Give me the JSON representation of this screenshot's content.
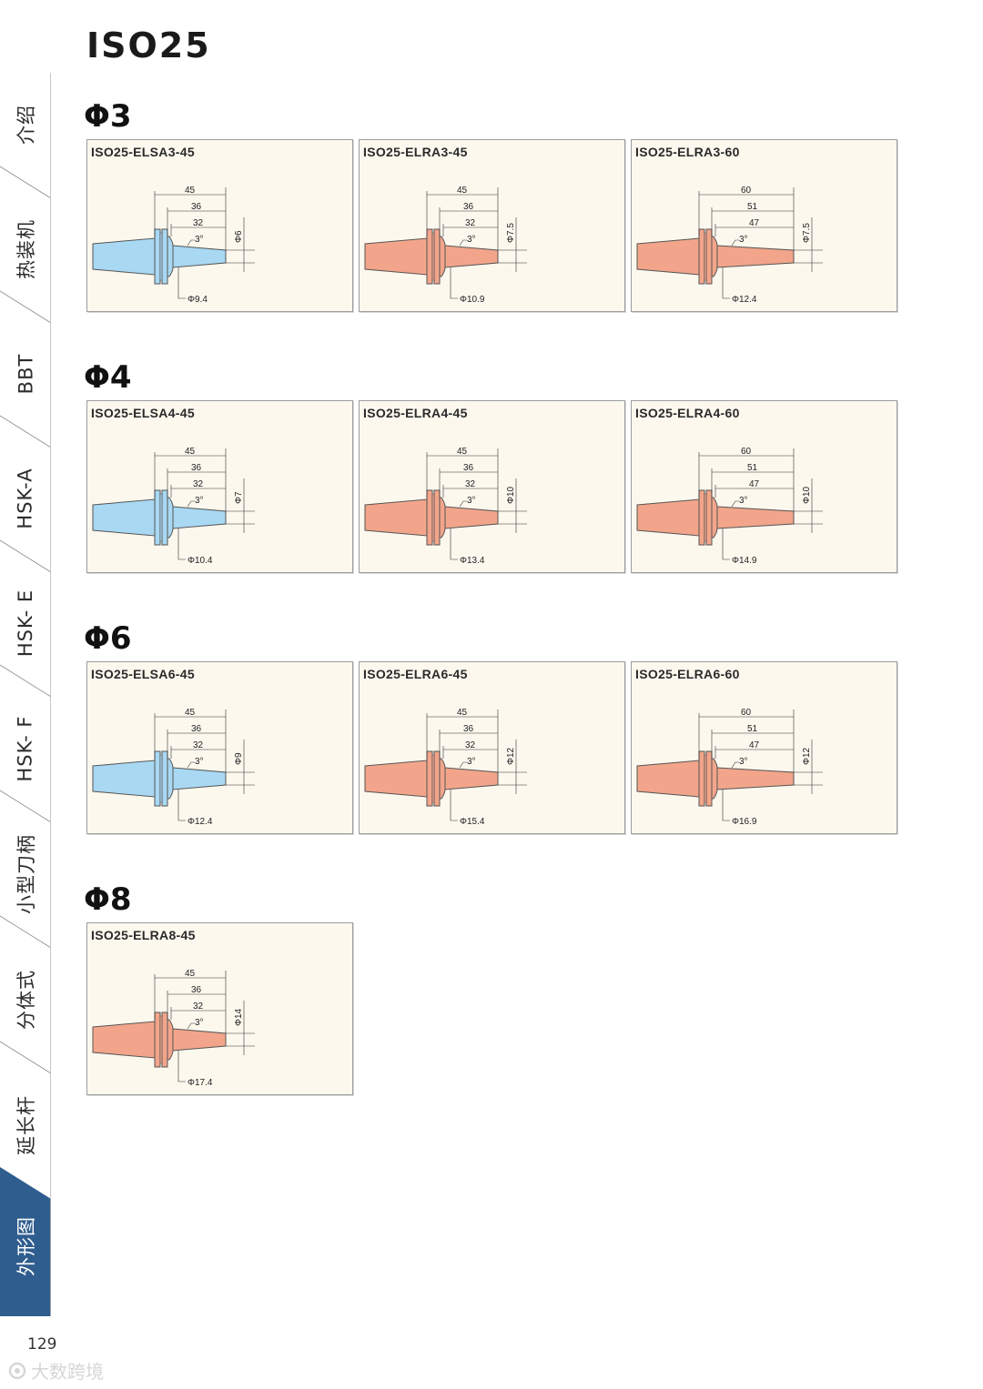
{
  "page": {
    "title": "ISO25",
    "page_number": "129",
    "watermark": "大数跨境"
  },
  "sidebar": {
    "items": [
      {
        "label": "介绍"
      },
      {
        "label": "热装机"
      },
      {
        "label": "BBT"
      },
      {
        "label": "HSK-A"
      },
      {
        "label": "HSK- E"
      },
      {
        "label": "HSK- F"
      },
      {
        "label": "小型刀柄"
      },
      {
        "label": "分体式"
      },
      {
        "label": "延长杆"
      },
      {
        "label": "外形图"
      }
    ],
    "active_index": 9,
    "active_color": "#2f5d8e"
  },
  "colors": {
    "ELSA": "#a9d8f2",
    "ELRA": "#f2a58a",
    "body_stroke": "#555555",
    "card_bg": "#fcf8ee"
  },
  "sections": [
    {
      "title": "Φ3",
      "cards": [
        {
          "model": "ISO25-ELSA3-45",
          "type": "ELSA",
          "dims": [
            "45",
            "36",
            "32"
          ],
          "angle": "3°",
          "bore": "Φ6",
          "dia": "Φ9.4"
        },
        {
          "model": "ISO25-ELRA3-45",
          "type": "ELRA",
          "dims": [
            "45",
            "36",
            "32"
          ],
          "angle": "3°",
          "bore": "Φ7.5",
          "dia": "Φ10.9"
        },
        {
          "model": "ISO25-ELRA3-60",
          "type": "ELRA",
          "dims": [
            "60",
            "51",
            "47"
          ],
          "angle": "3°",
          "bore": "Φ7.5",
          "dia": "Φ12.4"
        }
      ]
    },
    {
      "title": "Φ4",
      "cards": [
        {
          "model": "ISO25-ELSA4-45",
          "type": "ELSA",
          "dims": [
            "45",
            "36",
            "32"
          ],
          "angle": "3°",
          "bore": "Φ7",
          "dia": "Φ10.4"
        },
        {
          "model": "ISO25-ELRA4-45",
          "type": "ELRA",
          "dims": [
            "45",
            "36",
            "32"
          ],
          "angle": "3°",
          "bore": "Φ10",
          "dia": "Φ13.4"
        },
        {
          "model": "ISO25-ELRA4-60",
          "type": "ELRA",
          "dims": [
            "60",
            "51",
            "47"
          ],
          "angle": "3°",
          "bore": "Φ10",
          "dia": "Φ14.9"
        }
      ]
    },
    {
      "title": "Φ6",
      "cards": [
        {
          "model": "ISO25-ELSA6-45",
          "type": "ELSA",
          "dims": [
            "45",
            "36",
            "32"
          ],
          "angle": "3°",
          "bore": "Φ9",
          "dia": "Φ12.4"
        },
        {
          "model": "ISO25-ELRA6-45",
          "type": "ELRA",
          "dims": [
            "45",
            "36",
            "32"
          ],
          "angle": "3°",
          "bore": "Φ12",
          "dia": "Φ15.4"
        },
        {
          "model": "ISO25-ELRA6-60",
          "type": "ELRA",
          "dims": [
            "60",
            "51",
            "47"
          ],
          "angle": "3°",
          "bore": "Φ12",
          "dia": "Φ16.9"
        }
      ]
    },
    {
      "title": "Φ8",
      "cards": [
        {
          "model": "ISO25-ELRA8-45",
          "type": "ELRA",
          "dims": [
            "45",
            "36",
            "32"
          ],
          "angle": "3°",
          "bore": "Φ14",
          "dia": "Φ17.4"
        }
      ]
    }
  ]
}
